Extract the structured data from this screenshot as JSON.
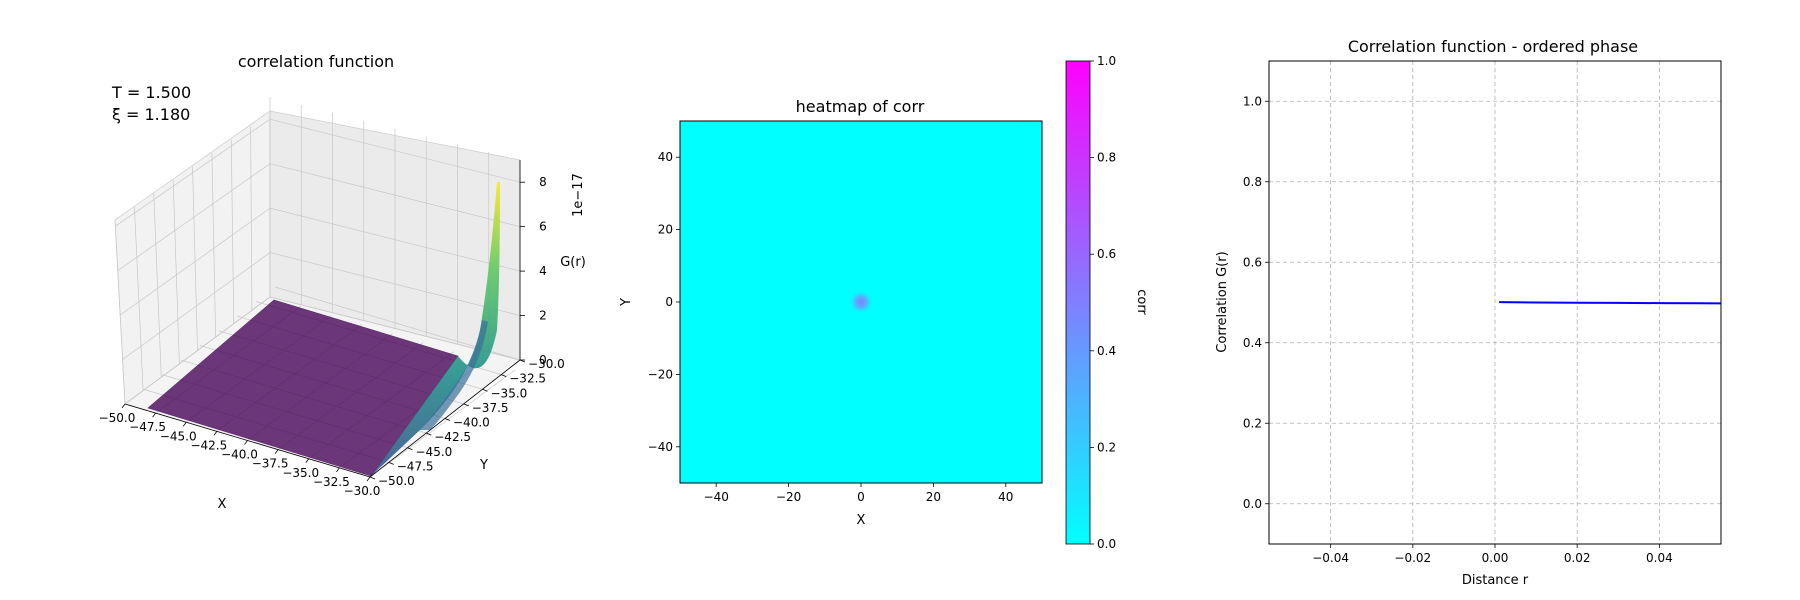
{
  "chart_data": [
    {
      "type": "surface3d",
      "title": "correlation function",
      "xlabel": "X",
      "ylabel": "Y",
      "zlabel": "G(r)",
      "z_offset_label": "1e−17",
      "annotations": [
        "T = 1.500",
        "ξ = 1.180"
      ],
      "xlim": [
        -50,
        -30
      ],
      "ylim": [
        -50,
        -30
      ],
      "zlim": [
        0,
        9
      ],
      "x_ticks": [
        "−50.0",
        "−47.5",
        "−45.0",
        "−42.5",
        "−40.0",
        "−37.5",
        "−35.0",
        "−32.5",
        "−30.0"
      ],
      "y_ticks": [
        "−50.0",
        "−47.5",
        "−45.0",
        "−42.5",
        "−40.0",
        "−37.5",
        "−35.0",
        "−32.5",
        "−30.0"
      ],
      "z_ticks": [
        "0",
        "2",
        "4",
        "6",
        "8"
      ],
      "z_peak": 8.8,
      "colormap": "viridis",
      "grid": true
    },
    {
      "type": "heatmap",
      "title": "heatmap of corr",
      "xlabel": "X",
      "ylabel": "Y",
      "colorbar_label": "corr",
      "xlim": [
        -50,
        50
      ],
      "ylim": [
        -50,
        50
      ],
      "x_ticks": [
        "−40",
        "−20",
        "0",
        "20",
        "40"
      ],
      "y_ticks": [
        "−40",
        "−20",
        "0",
        "20",
        "40"
      ],
      "colorbar_ticks": [
        "0.0",
        "0.2",
        "0.4",
        "0.6",
        "0.8",
        "1.0"
      ],
      "clim": [
        0,
        1
      ],
      "peak": {
        "x": 0,
        "y": 0,
        "value": 0.5
      },
      "background_value": 0.0,
      "colormap": "cool"
    },
    {
      "type": "line",
      "title": "Correlation function - ordered phase",
      "xlabel": "Distance r",
      "ylabel": "Correlation G(r)",
      "xlim": [
        -0.055,
        0.055
      ],
      "ylim": [
        -0.1,
        1.1
      ],
      "x_ticks": [
        "−0.04",
        "−0.02",
        "0.00",
        "0.02",
        "0.04"
      ],
      "y_ticks": [
        "0.0",
        "0.2",
        "0.4",
        "0.6",
        "0.8",
        "1.0"
      ],
      "series": [
        {
          "x": [
            0.001,
            0.01,
            0.02,
            0.03,
            0.04,
            0.05,
            0.055
          ],
          "y": [
            0.501,
            0.5,
            0.4995,
            0.499,
            0.4985,
            0.498,
            0.4978
          ],
          "color": "#0000ff"
        }
      ],
      "grid": true
    }
  ]
}
